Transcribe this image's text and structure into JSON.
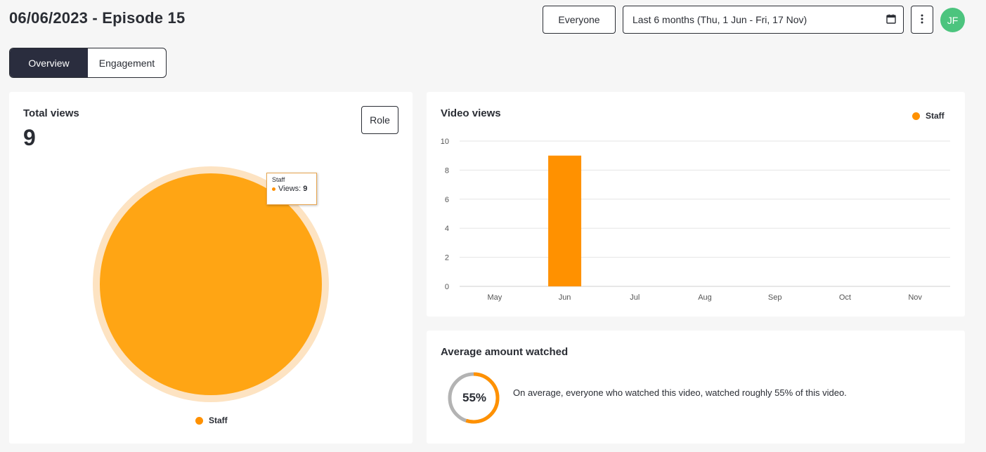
{
  "header": {
    "title": "06/06/2023 - Episode 15",
    "audience_label": "Everyone",
    "date_range": "Last 6 months (Thu, 1 Jun - Fri, 17 Nov)",
    "avatar_initials": "JF"
  },
  "tabs": [
    {
      "label": "Overview",
      "active": true
    },
    {
      "label": "Engagement",
      "active": false
    }
  ],
  "total_views": {
    "title": "Total views",
    "value": "9",
    "role_button": "Role",
    "legend_label": "Staff",
    "tooltip": {
      "title": "Staff",
      "key": "Views:",
      "value": "9"
    }
  },
  "video_views": {
    "title": "Video views",
    "legend_label": "Staff"
  },
  "average": {
    "title": "Average amount watched",
    "percent_label": "55%",
    "description": "On average, everyone who watched this video, watched roughly 55% of this video."
  },
  "colors": {
    "accent": "#ff9100",
    "pie": "#ffa514",
    "pie_halo": "#fde3c2",
    "gauge_track": "#b3b3b3",
    "grid": "#e6e6e6",
    "dark": "#2a2d3e",
    "avatar": "#4cc47e"
  },
  "icons": {
    "date_range": "calendar-icon",
    "more": "vertical-dots-icon"
  },
  "chart_data": [
    {
      "type": "pie",
      "categories": [
        "Staff"
      ],
      "values": [
        9
      ],
      "legend": "bottom"
    },
    {
      "type": "bar",
      "title": "Video views",
      "categories": [
        "May",
        "Jun",
        "Jul",
        "Aug",
        "Sep",
        "Oct",
        "Nov"
      ],
      "series": [
        {
          "name": "Staff",
          "values": [
            0,
            9,
            0,
            0,
            0,
            0,
            0
          ]
        }
      ],
      "ylim": [
        0,
        10
      ],
      "yticks": [
        0,
        2,
        4,
        6,
        8,
        10
      ],
      "grid": true,
      "legend": "top-right"
    },
    {
      "type": "pie",
      "values": [
        55
      ],
      "unit": "%"
    }
  ]
}
